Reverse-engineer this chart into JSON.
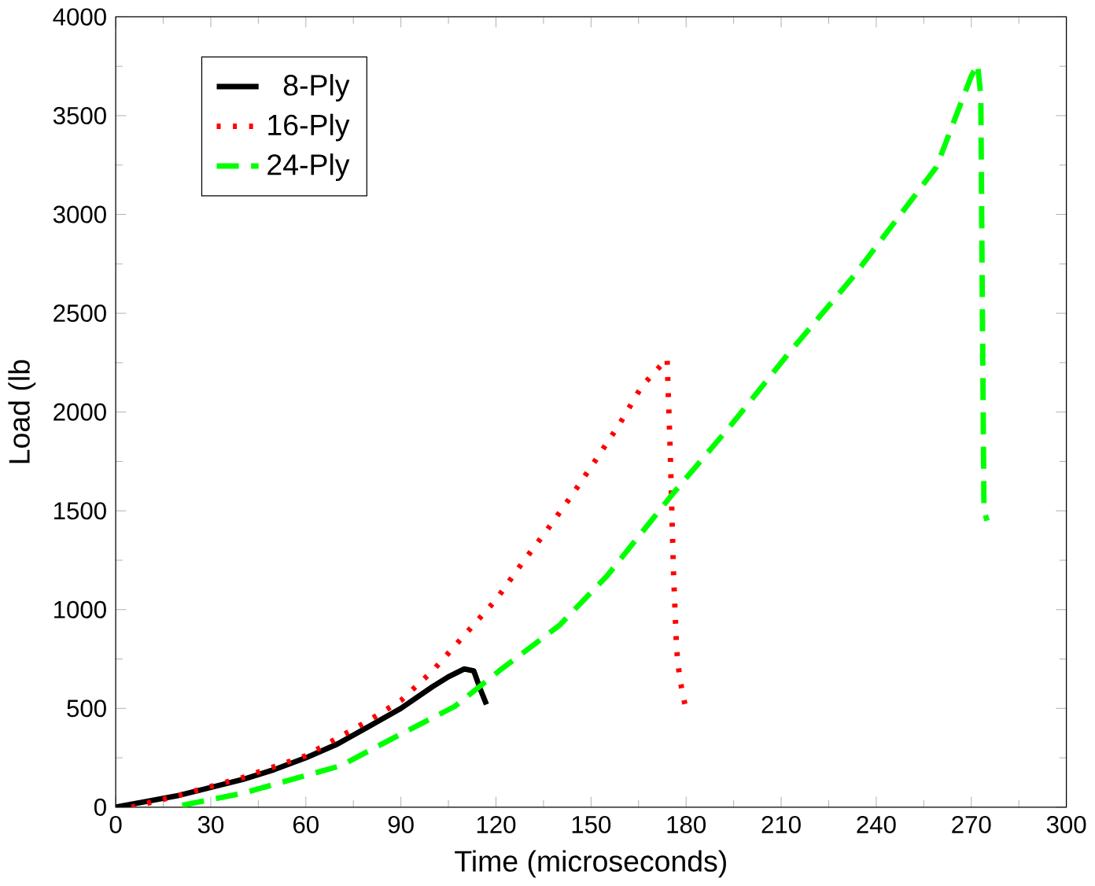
{
  "chart_data": {
    "type": "line",
    "xlabel": "Time (microseconds)",
    "ylabel": "Load (lb",
    "xlim": [
      0,
      300
    ],
    "ylim": [
      0,
      4000
    ],
    "xticks": [
      0,
      30,
      60,
      90,
      120,
      150,
      180,
      210,
      240,
      270,
      300
    ],
    "yticks": [
      0,
      500,
      1000,
      1500,
      2000,
      2500,
      3000,
      3500,
      4000
    ],
    "legend": "top left",
    "marker": "none",
    "series": [
      {
        "name": "8-Ply",
        "color": "#000000",
        "line_style": "solid",
        "x": [
          0,
          10,
          20,
          30,
          40,
          50,
          60,
          70,
          80,
          90,
          100,
          105,
          110,
          113,
          115,
          117
        ],
        "values": [
          0,
          30,
          60,
          100,
          140,
          190,
          250,
          320,
          410,
          500,
          610,
          660,
          700,
          690,
          600,
          520
        ]
      },
      {
        "name": "16-Ply",
        "color": "#ff0000",
        "line_style": "dotted",
        "x": [
          5,
          20,
          40,
          60,
          80,
          90,
          100,
          110,
          120,
          128,
          136,
          144,
          152,
          159,
          166,
          174,
          175,
          176,
          177,
          178,
          180
        ],
        "values": [
          0,
          60,
          150,
          260,
          440,
          540,
          690,
          870,
          1050,
          1230,
          1400,
          1580,
          1770,
          1940,
          2130,
          2270,
          1800,
          1200,
          800,
          650,
          490
        ]
      },
      {
        "name": "24-Ply",
        "color": "#00ff00",
        "line_style": "dashed",
        "x": [
          21,
          40,
          71,
          90,
          107,
          121,
          140,
          155,
          176,
          194,
          212,
          233,
          259,
          270,
          272,
          273,
          273.5,
          274,
          275
        ],
        "values": [
          10,
          70,
          210,
          370,
          510,
          690,
          920,
          1170,
          1590,
          1930,
          2290,
          2690,
          3240,
          3700,
          3760,
          3600,
          2500,
          1500,
          1450
        ]
      }
    ]
  }
}
